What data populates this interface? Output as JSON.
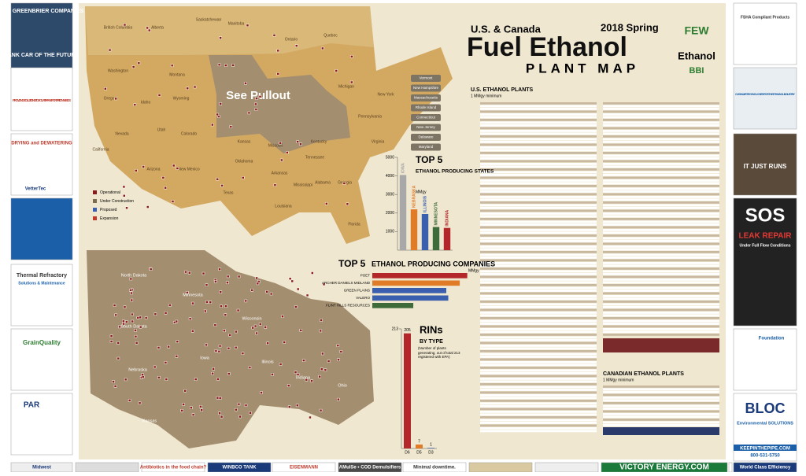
{
  "header": {
    "region": "U.S. & Canada",
    "edition": "2018 Spring",
    "title": "Fuel Ethanol",
    "subtitle": "PLANT MAP",
    "logo_few": "FEW",
    "logo_ethanol": "Ethanol",
    "logo_bbi": "BBI"
  },
  "map": {
    "pullout": "See Pullout",
    "legend": [
      "Operational",
      "Under Construction",
      "Proposed",
      "Expansion"
    ],
    "states": [
      "Washington",
      "Oregon",
      "California",
      "Nevada",
      "Idaho",
      "Montana",
      "Wyoming",
      "Utah",
      "Arizona",
      "Colorado",
      "New Mexico",
      "Texas",
      "Oklahoma",
      "Kansas",
      "Missouri",
      "Arkansas",
      "Louisiana",
      "Mississippi",
      "Alabama",
      "Georgia",
      "Florida",
      "Tennessee",
      "Kentucky",
      "Michigan",
      "New York",
      "Pennsylvania",
      "Virginia",
      "Quebec",
      "Ontario",
      "Manitoba",
      "Saskatchewan",
      "Alberta",
      "British Columbia"
    ],
    "east_labels": [
      "Vermont",
      "New Hampshire",
      "Massachusetts",
      "Rhode Island",
      "Connecticut",
      "New Jersey",
      "Delaware",
      "Maryland"
    ],
    "pullout_states": [
      "North Dakota",
      "Minnesota",
      "South Dakota",
      "Wisconsin",
      "Nebraska",
      "Iowa",
      "Illinois",
      "Indiana",
      "Ohio",
      "Kansas"
    ]
  },
  "tables": {
    "us_title": "U.S. ETHANOL PLANTS",
    "us_note": "1 MMgy minimum",
    "ca_title": "CANADIAN ETHANOL PLANTS",
    "ca_note": "1 MMgy minimum"
  },
  "ads": {
    "left": [
      "THE GREENBRIER COMPANIES",
      "TANK CAR OF THE FUTURE",
      "PROVIDING SOLUTIONS TO YOUR TRANSPORTATION NEEDS",
      "DRYING and DEWATERING",
      "VetterTec",
      "Thermal Refractory",
      "Solutions & Maintenance",
      "GrainQuality",
      "PAR"
    ],
    "right": [
      "FSHA Compliant Products",
      "CLEAN AIR TECHNOLOGIES FOR THE ETHANOL INDUSTRY",
      "IT JUST RUNS",
      "SOS",
      "LEAK REPAIR",
      "Under Full Flow Conditions",
      "Foundation",
      "BLOC",
      "Environmental SOLUTIONS",
      "KEEPINTHEPIPE.COM",
      "800-531-5750"
    ],
    "bottom": [
      "Midwest",
      "Antibiotics in the food chain?",
      "WINBCO TANK",
      "EISENMANN",
      "AMulSe • COD Demulsifiers",
      "Minimal downtime.",
      "VICTORY ENERGY.COM",
      "World Class Efficiency"
    ]
  },
  "chart_data": [
    {
      "type": "bar",
      "title": "TOP 5",
      "subtitle": "ETHANOL PRODUCING STATES",
      "unit": "MMgy",
      "categories": [
        "IOWA",
        "NEBRASKA",
        "ILLINOIS",
        "MINNESOTA",
        "INDIANA"
      ],
      "values": [
        4050,
        2200,
        1950,
        1250,
        1200
      ],
      "colors": [
        "#a8a8a8",
        "#e07b28",
        "#3a5fae",
        "#3d6b3a",
        "#b3262a"
      ],
      "ylim": [
        0,
        5000
      ],
      "yticks": [
        1000,
        2000,
        3000,
        4000,
        5000
      ]
    },
    {
      "type": "hbar",
      "title": "TOP 5",
      "subtitle": "ETHANOL PRODUCING COMPANIES",
      "unit": "MMgy",
      "categories": [
        "POET",
        "ARCHER DANIELS MIDLAND",
        "GREEN PLAINS",
        "VALERO",
        "FLINT HILLS RESOURCES"
      ],
      "values": [
        1900,
        1750,
        1480,
        1520,
        820
      ],
      "colors": [
        "#b3262a",
        "#e07b28",
        "#3a5fae",
        "#3a5fae",
        "#3d6b3a"
      ],
      "xlim": [
        0,
        2000
      ]
    },
    {
      "type": "bar",
      "title": "RINs",
      "subtitle": "BY TYPE",
      "note": "(Number of plants generating, out of total 213 registered with EPA)",
      "categories": [
        "D6",
        "D5",
        "D3"
      ],
      "values": [
        205,
        7,
        1
      ],
      "colors": [
        "#b3262a",
        "#e07b28",
        "#3a5fae"
      ],
      "ylim": [
        0,
        213
      ],
      "yticks": [
        213
      ]
    }
  ]
}
